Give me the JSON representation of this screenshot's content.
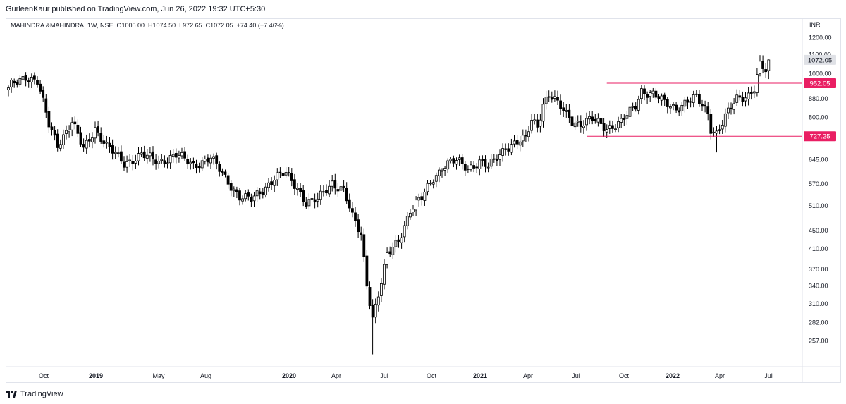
{
  "header": {
    "published_line": "GurleenKaur published on TradingView.com, Jun 26, 2022 19:32 UTC+5:30"
  },
  "footer": {
    "brand": "TradingView"
  },
  "chart_data": {
    "type": "candlestick",
    "title": "MAHINDRA &MAHINDRA, 1W, NSE",
    "legend": "MAHINDRA &MAHINDRA, 1W, NSE  O1005.00  H1074.50  L972.65  C1072.05  +74.40 (+7.46%)",
    "currency": "INR",
    "scale": "log",
    "ylim": [
      232,
      1215
    ],
    "y_ticks": [
      1200,
      1100,
      1000,
      880,
      800,
      727.25,
      645,
      570,
      510,
      450,
      410,
      370,
      340,
      310,
      282,
      257
    ],
    "y_tick_labels": [
      "1200.00",
      "1100.00",
      "1000.00",
      "880.00",
      "800.00",
      "",
      "645.00",
      "570.00",
      "510.00",
      "450.00",
      "410.00",
      "370.00",
      "340.00",
      "310.00",
      "282.00",
      "257.00"
    ],
    "x_labels": [
      {
        "label": "Oct",
        "bold": false
      },
      {
        "label": "2019",
        "bold": true
      },
      {
        "label": "May",
        "bold": false
      },
      {
        "label": "Aug",
        "bold": false
      },
      {
        "label": "2020",
        "bold": true
      },
      {
        "label": "Apr",
        "bold": false
      },
      {
        "label": "Jul",
        "bold": false
      },
      {
        "label": "Oct",
        "bold": false
      },
      {
        "label": "2021",
        "bold": true
      },
      {
        "label": "Apr",
        "bold": false
      },
      {
        "label": "Jul",
        "bold": false
      },
      {
        "label": "Oct",
        "bold": false
      },
      {
        "label": "2022",
        "bold": true
      },
      {
        "label": "Apr",
        "bold": false
      },
      {
        "label": "Jul",
        "bold": false
      }
    ],
    "price_badges": [
      {
        "value": 1072.05,
        "label": "1072.05",
        "kind": "last"
      },
      {
        "value": 952.05,
        "label": "952.05",
        "kind": "level"
      },
      {
        "value": 727.25,
        "label": "727.25",
        "kind": "level"
      }
    ],
    "horizontal_levels": [
      {
        "value": 952.05,
        "from_week": 207,
        "color": "#e91e63"
      },
      {
        "value": 727.25,
        "from_week": 200,
        "color": "#e91e63"
      }
    ],
    "colors": {
      "up_fill": "#ffffff",
      "down_fill": "#000000",
      "wick": "#000000",
      "level": "#e91e63",
      "axis_text": "#131722",
      "border": "#e0e3eb"
    },
    "anchors": [
      {
        "w": 0,
        "p": 930
      },
      {
        "w": 6,
        "p": 990
      },
      {
        "w": 10,
        "p": 960
      },
      {
        "w": 14,
        "p": 770
      },
      {
        "w": 17,
        "p": 700
      },
      {
        "w": 22,
        "p": 780
      },
      {
        "w": 26,
        "p": 680
      },
      {
        "w": 30,
        "p": 760
      },
      {
        "w": 34,
        "p": 690
      },
      {
        "w": 40,
        "p": 635
      },
      {
        "w": 46,
        "p": 660
      },
      {
        "w": 52,
        "p": 640
      },
      {
        "w": 58,
        "p": 660
      },
      {
        "w": 64,
        "p": 630
      },
      {
        "w": 70,
        "p": 650
      },
      {
        "w": 75,
        "p": 590
      },
      {
        "w": 80,
        "p": 535
      },
      {
        "w": 84,
        "p": 525
      },
      {
        "w": 88,
        "p": 555
      },
      {
        "w": 92,
        "p": 590
      },
      {
        "w": 96,
        "p": 600
      },
      {
        "w": 100,
        "p": 560
      },
      {
        "w": 103,
        "p": 520
      },
      {
        "w": 107,
        "p": 525
      },
      {
        "w": 112,
        "p": 575
      },
      {
        "w": 116,
        "p": 555
      },
      {
        "w": 119,
        "p": 480
      },
      {
        "w": 122,
        "p": 440
      },
      {
        "w": 124,
        "p": 345
      },
      {
        "w": 126,
        "p": 290
      },
      {
        "w": 129,
        "p": 345
      },
      {
        "w": 131,
        "p": 395
      },
      {
        "w": 135,
        "p": 430
      },
      {
        "w": 139,
        "p": 500
      },
      {
        "w": 143,
        "p": 530
      },
      {
        "w": 147,
        "p": 590
      },
      {
        "w": 151,
        "p": 630
      },
      {
        "w": 155,
        "p": 640
      },
      {
        "w": 159,
        "p": 620
      },
      {
        "w": 163,
        "p": 640
      },
      {
        "w": 166,
        "p": 620
      },
      {
        "w": 168,
        "p": 640
      },
      {
        "w": 172,
        "p": 690
      },
      {
        "w": 176,
        "p": 705
      },
      {
        "w": 179,
        "p": 715
      },
      {
        "w": 181,
        "p": 790
      },
      {
        "w": 183,
        "p": 770
      },
      {
        "w": 185,
        "p": 860
      },
      {
        "w": 187,
        "p": 900
      },
      {
        "w": 191,
        "p": 840
      },
      {
        "w": 195,
        "p": 790
      },
      {
        "w": 198,
        "p": 775
      },
      {
        "w": 202,
        "p": 790
      },
      {
        "w": 207,
        "p": 760
      },
      {
        "w": 212,
        "p": 780
      },
      {
        "w": 217,
        "p": 850
      },
      {
        "w": 219,
        "p": 920
      },
      {
        "w": 223,
        "p": 900
      },
      {
        "w": 227,
        "p": 860
      },
      {
        "w": 231,
        "p": 840
      },
      {
        "w": 235,
        "p": 870
      },
      {
        "w": 238,
        "p": 880
      },
      {
        "w": 242,
        "p": 820
      },
      {
        "w": 243,
        "p": 760
      },
      {
        "w": 245,
        "p": 740
      },
      {
        "w": 248,
        "p": 800
      },
      {
        "w": 252,
        "p": 880
      },
      {
        "w": 256,
        "p": 900
      },
      {
        "w": 258,
        "p": 930
      },
      {
        "w": 260,
        "p": 1040
      },
      {
        "w": 262,
        "p": 1010
      },
      {
        "w": 263,
        "p": 1072
      }
    ]
  }
}
